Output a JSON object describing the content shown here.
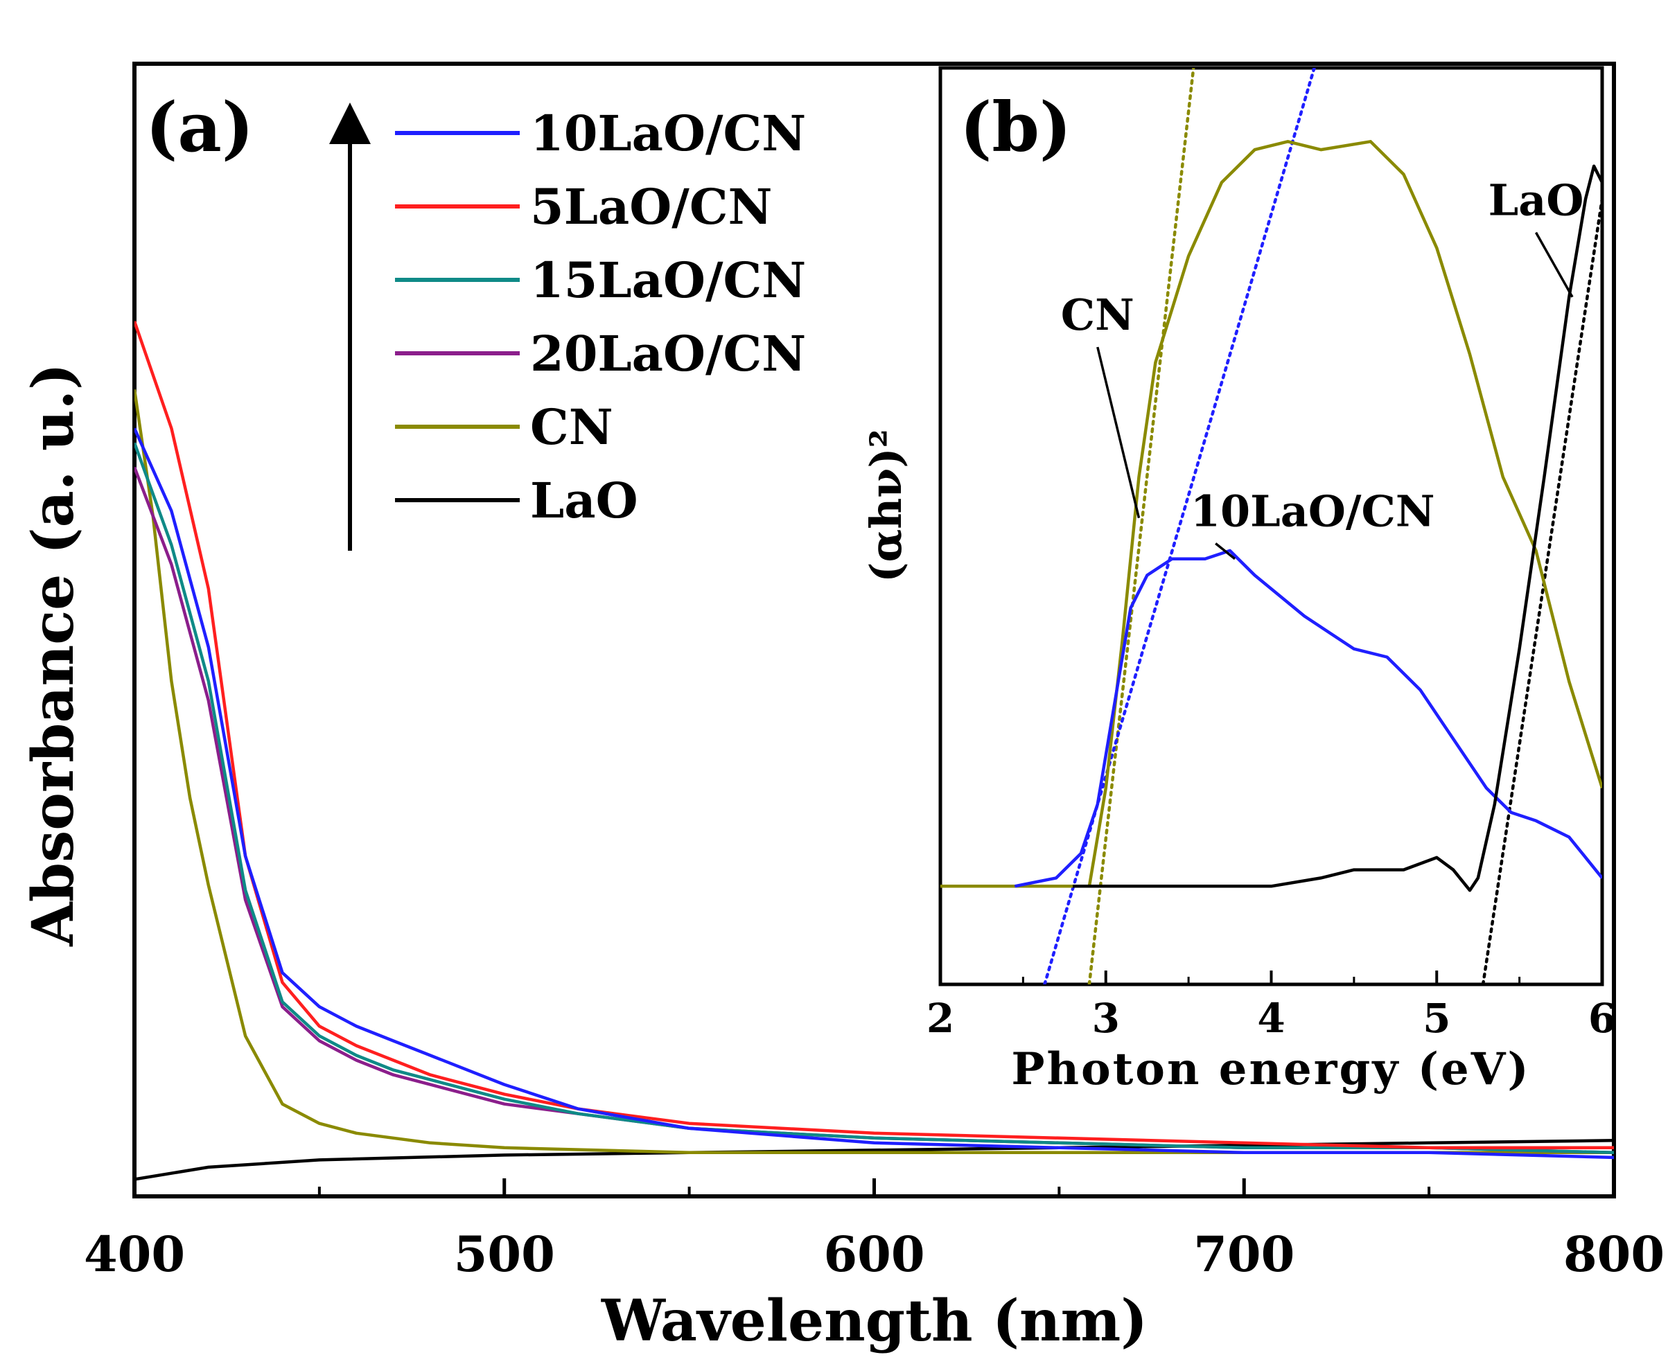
{
  "chart_data": [
    {
      "id": "a",
      "type": "line",
      "panel_label": "(a)",
      "xlabel": "Wavelength (nm)",
      "ylabel": "Absorbance (a. u.)",
      "xlim": [
        400,
        800
      ],
      "ylim": [
        -0.08,
        2.25
      ],
      "xticks": [
        400,
        500,
        600,
        700,
        800
      ],
      "y_tick_labels": false,
      "legend": "top-left",
      "arrow": "upward arrow beside legend",
      "series": [
        {
          "name": "10LaO/CN",
          "color": "#1f1fff",
          "x": [
            400,
            410,
            420,
            430,
            440,
            450,
            460,
            470,
            480,
            500,
            520,
            550,
            600,
            650,
            700,
            750,
            800
          ],
          "y": [
            1.5,
            1.33,
            1.05,
            0.62,
            0.38,
            0.31,
            0.27,
            0.24,
            0.21,
            0.15,
            0.1,
            0.06,
            0.03,
            0.02,
            0.01,
            0.01,
            0.0
          ]
        },
        {
          "name": "5LaO/CN",
          "color": "#ff1f1f",
          "x": [
            400,
            410,
            420,
            430,
            440,
            450,
            460,
            470,
            480,
            500,
            520,
            550,
            600,
            650,
            700,
            750,
            800
          ],
          "y": [
            1.72,
            1.5,
            1.17,
            0.62,
            0.36,
            0.27,
            0.23,
            0.2,
            0.17,
            0.13,
            0.1,
            0.07,
            0.05,
            0.04,
            0.03,
            0.02,
            0.02
          ]
        },
        {
          "name": "15LaO/CN",
          "color": "#0f8a87",
          "x": [
            400,
            410,
            420,
            430,
            440,
            450,
            460,
            470,
            480,
            500,
            520,
            550,
            600,
            650,
            700,
            750,
            800
          ],
          "y": [
            1.47,
            1.26,
            0.98,
            0.55,
            0.32,
            0.25,
            0.21,
            0.18,
            0.16,
            0.12,
            0.09,
            0.06,
            0.04,
            0.03,
            0.02,
            0.02,
            0.01
          ]
        },
        {
          "name": "20LaO/CN",
          "color": "#8b1e8b",
          "x": [
            400,
            410,
            420,
            430,
            440,
            450,
            460,
            470,
            480,
            500,
            520,
            550,
            600,
            650,
            700,
            750,
            800
          ],
          "y": [
            1.42,
            1.22,
            0.94,
            0.53,
            0.31,
            0.24,
            0.2,
            0.17,
            0.15,
            0.11,
            0.09,
            0.06,
            0.04,
            0.03,
            0.02,
            0.02,
            0.01
          ]
        },
        {
          "name": "CN",
          "color": "#8a8a00",
          "x": [
            400,
            405,
            410,
            415,
            420,
            430,
            440,
            450,
            460,
            480,
            500,
            550,
            600,
            650,
            700,
            750,
            800
          ],
          "y": [
            1.58,
            1.32,
            0.98,
            0.74,
            0.56,
            0.25,
            0.11,
            0.07,
            0.05,
            0.03,
            0.02,
            0.01,
            0.01,
            0.01,
            0.01,
            0.01,
            0.01
          ]
        },
        {
          "name": "LaO",
          "color": "#000000",
          "x": [
            400,
            420,
            450,
            500,
            550,
            600,
            650,
            700,
            750,
            800
          ],
          "y": [
            -0.045,
            -0.02,
            -0.005,
            0.005,
            0.01,
            0.015,
            0.02,
            0.025,
            0.03,
            0.035
          ]
        }
      ]
    },
    {
      "id": "b",
      "type": "line",
      "panel_label": "(b)",
      "xlabel": "Photon energy (eV)",
      "ylabel": "(αhν)²",
      "xlim": [
        2,
        6
      ],
      "ylim": [
        -0.12,
        1.0
      ],
      "xticks": [
        2,
        3,
        4,
        5,
        6
      ],
      "y_tick_labels": false,
      "series": [
        {
          "name": "CN",
          "color": "#8a8a00",
          "x": [
            2.0,
            2.5,
            2.9,
            3.0,
            3.1,
            3.2,
            3.3,
            3.5,
            3.7,
            3.9,
            4.1,
            4.3,
            4.6,
            4.8,
            5.0,
            5.2,
            5.4,
            5.6,
            5.8,
            6.0
          ],
          "y": [
            0.0,
            0.0,
            0.0,
            0.12,
            0.3,
            0.5,
            0.64,
            0.77,
            0.86,
            0.9,
            0.91,
            0.9,
            0.91,
            0.87,
            0.78,
            0.65,
            0.5,
            0.41,
            0.25,
            0.12
          ]
        },
        {
          "name": "10LaO/CN",
          "color": "#1f1fff",
          "x": [
            2.45,
            2.7,
            2.85,
            2.95,
            3.05,
            3.15,
            3.25,
            3.4,
            3.6,
            3.75,
            3.9,
            4.2,
            4.5,
            4.7,
            4.9,
            5.1,
            5.3,
            5.45,
            5.6,
            5.8,
            6.0
          ],
          "y": [
            0.0,
            0.01,
            0.04,
            0.1,
            0.22,
            0.34,
            0.38,
            0.4,
            0.4,
            0.41,
            0.38,
            0.33,
            0.29,
            0.28,
            0.24,
            0.18,
            0.12,
            0.09,
            0.08,
            0.06,
            0.01
          ]
        },
        {
          "name": "LaO",
          "color": "#000000",
          "x": [
            2.8,
            3.0,
            3.5,
            4.0,
            4.3,
            4.5,
            4.8,
            5.0,
            5.1,
            5.2,
            5.25,
            5.35,
            5.5,
            5.65,
            5.8,
            5.9,
            5.95,
            6.0
          ],
          "y": [
            0.0,
            0.0,
            0.0,
            0.0,
            0.01,
            0.02,
            0.02,
            0.035,
            0.02,
            -0.005,
            0.01,
            0.1,
            0.29,
            0.5,
            0.72,
            0.84,
            0.88,
            0.86
          ]
        }
      ],
      "fit_lines": [
        {
          "name": "CN fit",
          "color": "#8a8a00",
          "x": [
            2.9,
            3.53
          ],
          "y": [
            -0.12,
            1.0
          ]
        },
        {
          "name": "10LaO/CN fit",
          "color": "#1f1fff",
          "x": [
            2.63,
            4.26
          ],
          "y": [
            -0.12,
            1.0
          ]
        },
        {
          "name": "LaO fit",
          "color": "#000000",
          "x": [
            5.28,
            6.0
          ],
          "y": [
            -0.12,
            0.84
          ]
        }
      ],
      "annotations": [
        {
          "text": "CN",
          "target": "CN",
          "text_at": [
            2.95,
            0.68
          ],
          "point_at": [
            3.2,
            0.45
          ]
        },
        {
          "text": "10LaO/CN",
          "target": "10LaO/CN",
          "text_at": [
            4.25,
            0.44
          ],
          "point_at": [
            3.78,
            0.4
          ]
        },
        {
          "text": "LaO",
          "target": "LaO",
          "text_at": [
            5.6,
            0.82
          ],
          "point_at": [
            5.82,
            0.72
          ]
        }
      ]
    }
  ]
}
